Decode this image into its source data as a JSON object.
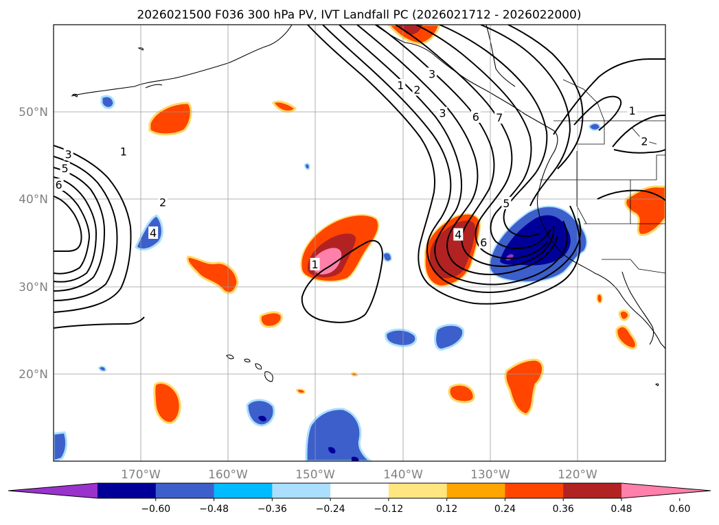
{
  "title": "2026021500 F036 300 hPa PV, IVT Landfall PC (2026021712 - 2026022000)",
  "map": {
    "lon_range": [
      -180,
      -110
    ],
    "lat_range": [
      10,
      60
    ],
    "x_ticks": [
      {
        "lon": -170,
        "label": "170°W"
      },
      {
        "lon": -160,
        "label": "160°W"
      },
      {
        "lon": -150,
        "label": "150°W"
      },
      {
        "lon": -140,
        "label": "140°W"
      },
      {
        "lon": -130,
        "label": "130°W"
      },
      {
        "lon": -120,
        "label": "120°W"
      }
    ],
    "y_ticks": [
      {
        "lat": 50,
        "label": "50°N"
      },
      {
        "lat": 40,
        "label": "40°N"
      },
      {
        "lat": 30,
        "label": "30°N"
      },
      {
        "lat": 20,
        "label": "20°N"
      }
    ]
  },
  "contour_labels": [
    {
      "text": "1",
      "lon": -172,
      "lat": 45.4
    },
    {
      "text": "2",
      "lon": -167.5,
      "lat": 39.6
    },
    {
      "text": "3",
      "lon": -178.3,
      "lat": 45.1
    },
    {
      "text": "4",
      "lon": -168.6,
      "lat": 36.1
    },
    {
      "text": "5",
      "lon": -178.7,
      "lat": 43.5
    },
    {
      "text": "6",
      "lon": -179.4,
      "lat": 41.6
    },
    {
      "text": "1",
      "lon": -140.3,
      "lat": 53
    },
    {
      "text": "2",
      "lon": -138.4,
      "lat": 52.5
    },
    {
      "text": "3",
      "lon": -136.7,
      "lat": 54.3
    },
    {
      "text": "3",
      "lon": -135.5,
      "lat": 49.8
    },
    {
      "text": "6",
      "lon": -131.7,
      "lat": 49.4
    },
    {
      "text": "7",
      "lon": -129,
      "lat": 49.3
    },
    {
      "text": "4",
      "lon": -133.7,
      "lat": 35.9
    },
    {
      "text": "6",
      "lon": -130.8,
      "lat": 35
    },
    {
      "text": "5",
      "lon": -128.2,
      "lat": 39.5
    },
    {
      "text": "1",
      "lon": -150.1,
      "lat": 32.5
    },
    {
      "text": "1",
      "lon": -113.8,
      "lat": 50.1
    },
    {
      "text": "2",
      "lon": -112.4,
      "lat": 46.6
    }
  ],
  "colorbar": {
    "colors": [
      "#9933cc",
      "#000099",
      "#3d5fcc",
      "#00bbff",
      "#aadfff",
      "#ffffff",
      "#ffe680",
      "#ffa500",
      "#ff4500",
      "#b22222",
      "#ff80aa"
    ],
    "ticks": [
      "−0.60",
      "−0.48",
      "−0.36",
      "−0.24",
      "−0.12",
      "0.12",
      "0.24",
      "0.36",
      "0.48",
      "0.60"
    ]
  }
}
